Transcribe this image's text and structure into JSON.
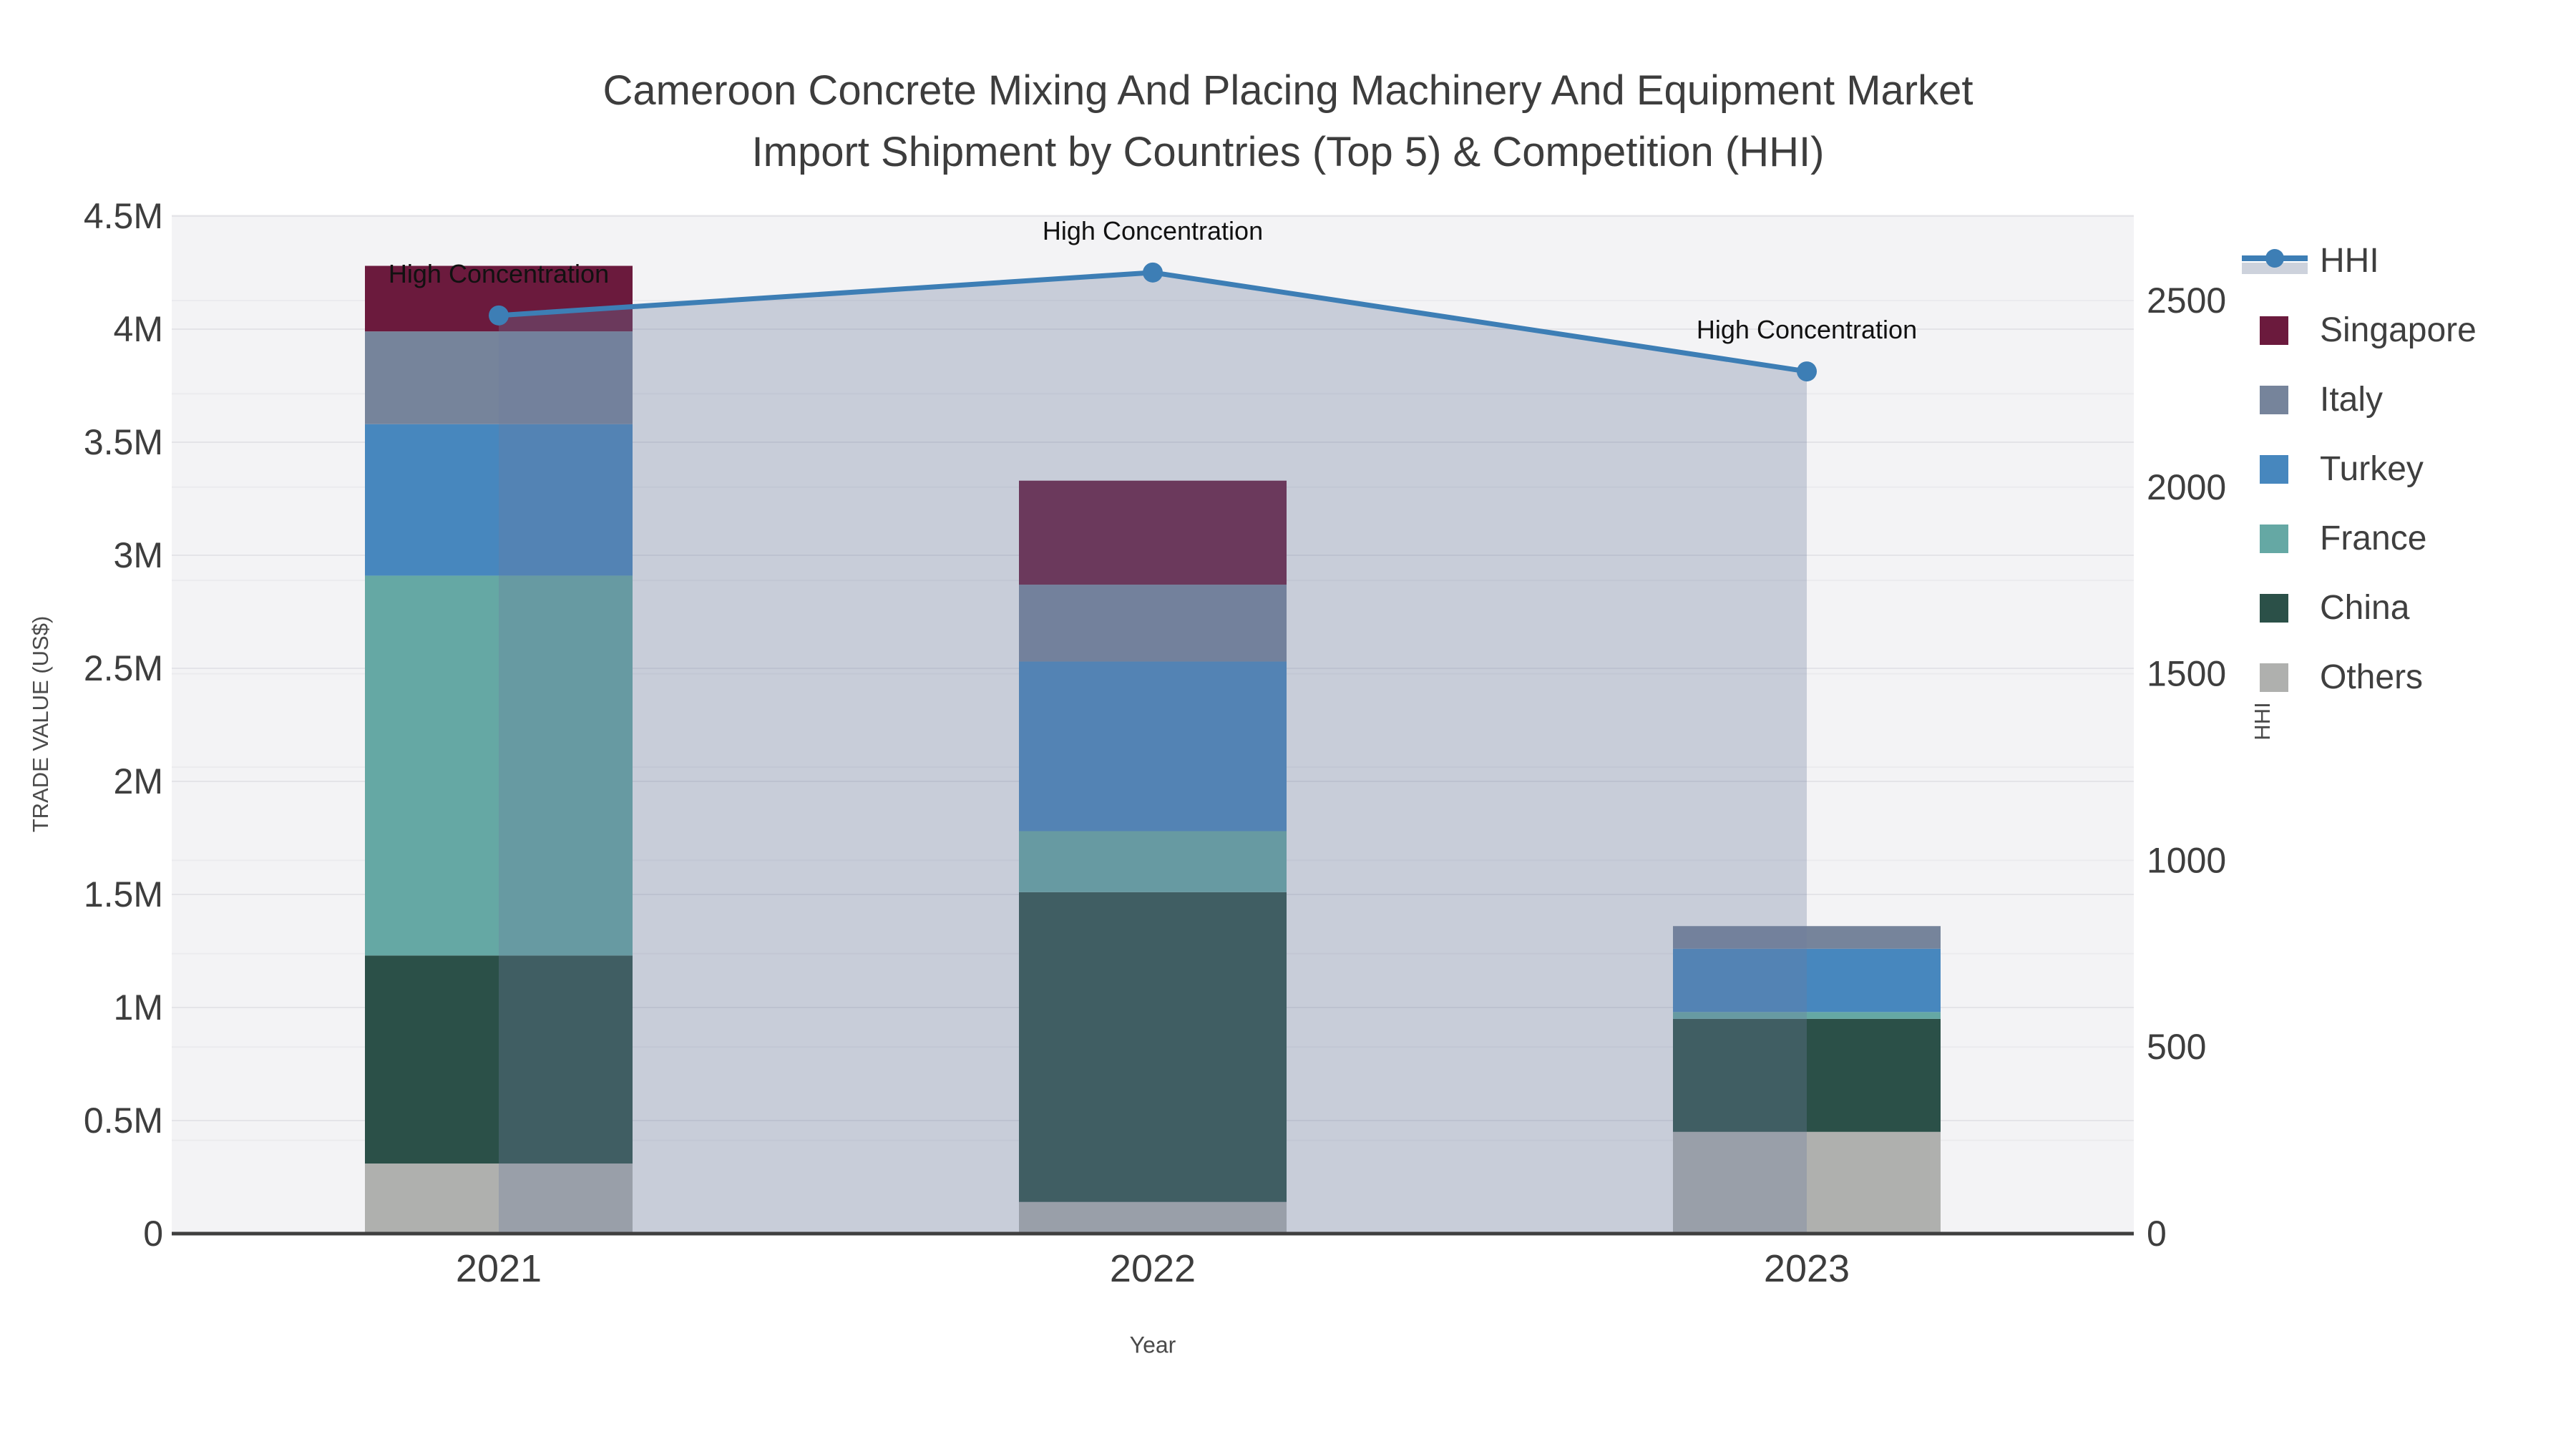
{
  "title": {
    "line1": "Cameroon Concrete Mixing And Placing Machinery And Equipment Market",
    "line2": "Import Shipment by Countries (Top 5) & Competition (HHI)"
  },
  "axes": {
    "x": {
      "title": "Year",
      "categories": [
        "2021",
        "2022",
        "2023"
      ]
    },
    "y_left": {
      "title": "TRADE VALUE (US$)",
      "range": [
        0,
        4500000
      ],
      "tick_values": [
        0,
        500000,
        1000000,
        1500000,
        2000000,
        2500000,
        3000000,
        3500000,
        4000000,
        4500000
      ],
      "tick_labels": [
        "0",
        "0.5M",
        "1M",
        "1.5M",
        "2M",
        "2.5M",
        "3M",
        "3.5M",
        "4M",
        "4.5M"
      ]
    },
    "y_right": {
      "title": "HHI",
      "range": [
        0,
        2730
      ],
      "tick_values": [
        0,
        500,
        1000,
        1500,
        2000,
        2500
      ],
      "tick_labels": [
        "0",
        "500",
        "1000",
        "1500",
        "2000",
        "2500"
      ],
      "minor_grid_step": 250
    }
  },
  "chart_data": {
    "type": "bar+line",
    "subtype": "stacked-bars-with-secondary-axis-line-area",
    "categories": [
      "2021",
      "2022",
      "2023"
    ],
    "series": [
      {
        "name": "Others",
        "color": "#afb0ae",
        "values": [
          310000,
          140000,
          450000
        ]
      },
      {
        "name": "China",
        "color": "#2b5048",
        "values": [
          920000,
          1370000,
          500000
        ]
      },
      {
        "name": "France",
        "color": "#65a8a4",
        "values": [
          1680000,
          270000,
          30000
        ]
      },
      {
        "name": "Turkey",
        "color": "#4787be",
        "values": [
          670000,
          750000,
          280000
        ]
      },
      {
        "name": "Italy",
        "color": "#76849b",
        "values": [
          410000,
          340000,
          100000
        ]
      },
      {
        "name": "Singapore",
        "color": "#6b1a3d",
        "values": [
          290000,
          460000,
          0
        ]
      }
    ],
    "stack_totals": [
      4280000,
      3330000,
      1360000
    ],
    "line_series": {
      "name": "HHI",
      "color": "#3d7eb5",
      "area_fill_color": "rgba(109,125,160,0.32)",
      "values": [
        2460,
        2575,
        2310
      ]
    },
    "annotations": [
      {
        "text": "High Concentration",
        "category": "2021"
      },
      {
        "text": "High Concentration",
        "category": "2022"
      },
      {
        "text": "High Concentration",
        "category": "2023"
      }
    ],
    "grid": true,
    "legend_position": "right"
  },
  "legend": {
    "items": [
      {
        "label": "HHI",
        "type": "line"
      },
      {
        "label": "Singapore",
        "type": "square"
      },
      {
        "label": "Italy",
        "type": "square"
      },
      {
        "label": "Turkey",
        "type": "square"
      },
      {
        "label": "France",
        "type": "square"
      },
      {
        "label": "China",
        "type": "square"
      },
      {
        "label": "Others",
        "type": "square"
      }
    ]
  },
  "colors": {
    "plot_background": "#f3f3f5",
    "grid_major": "#e4e4e8",
    "grid_minor": "#ebebee",
    "axis_line": "#3f3f3f",
    "tick_text": "#3e3e3e",
    "annotation_text": "#111111"
  }
}
